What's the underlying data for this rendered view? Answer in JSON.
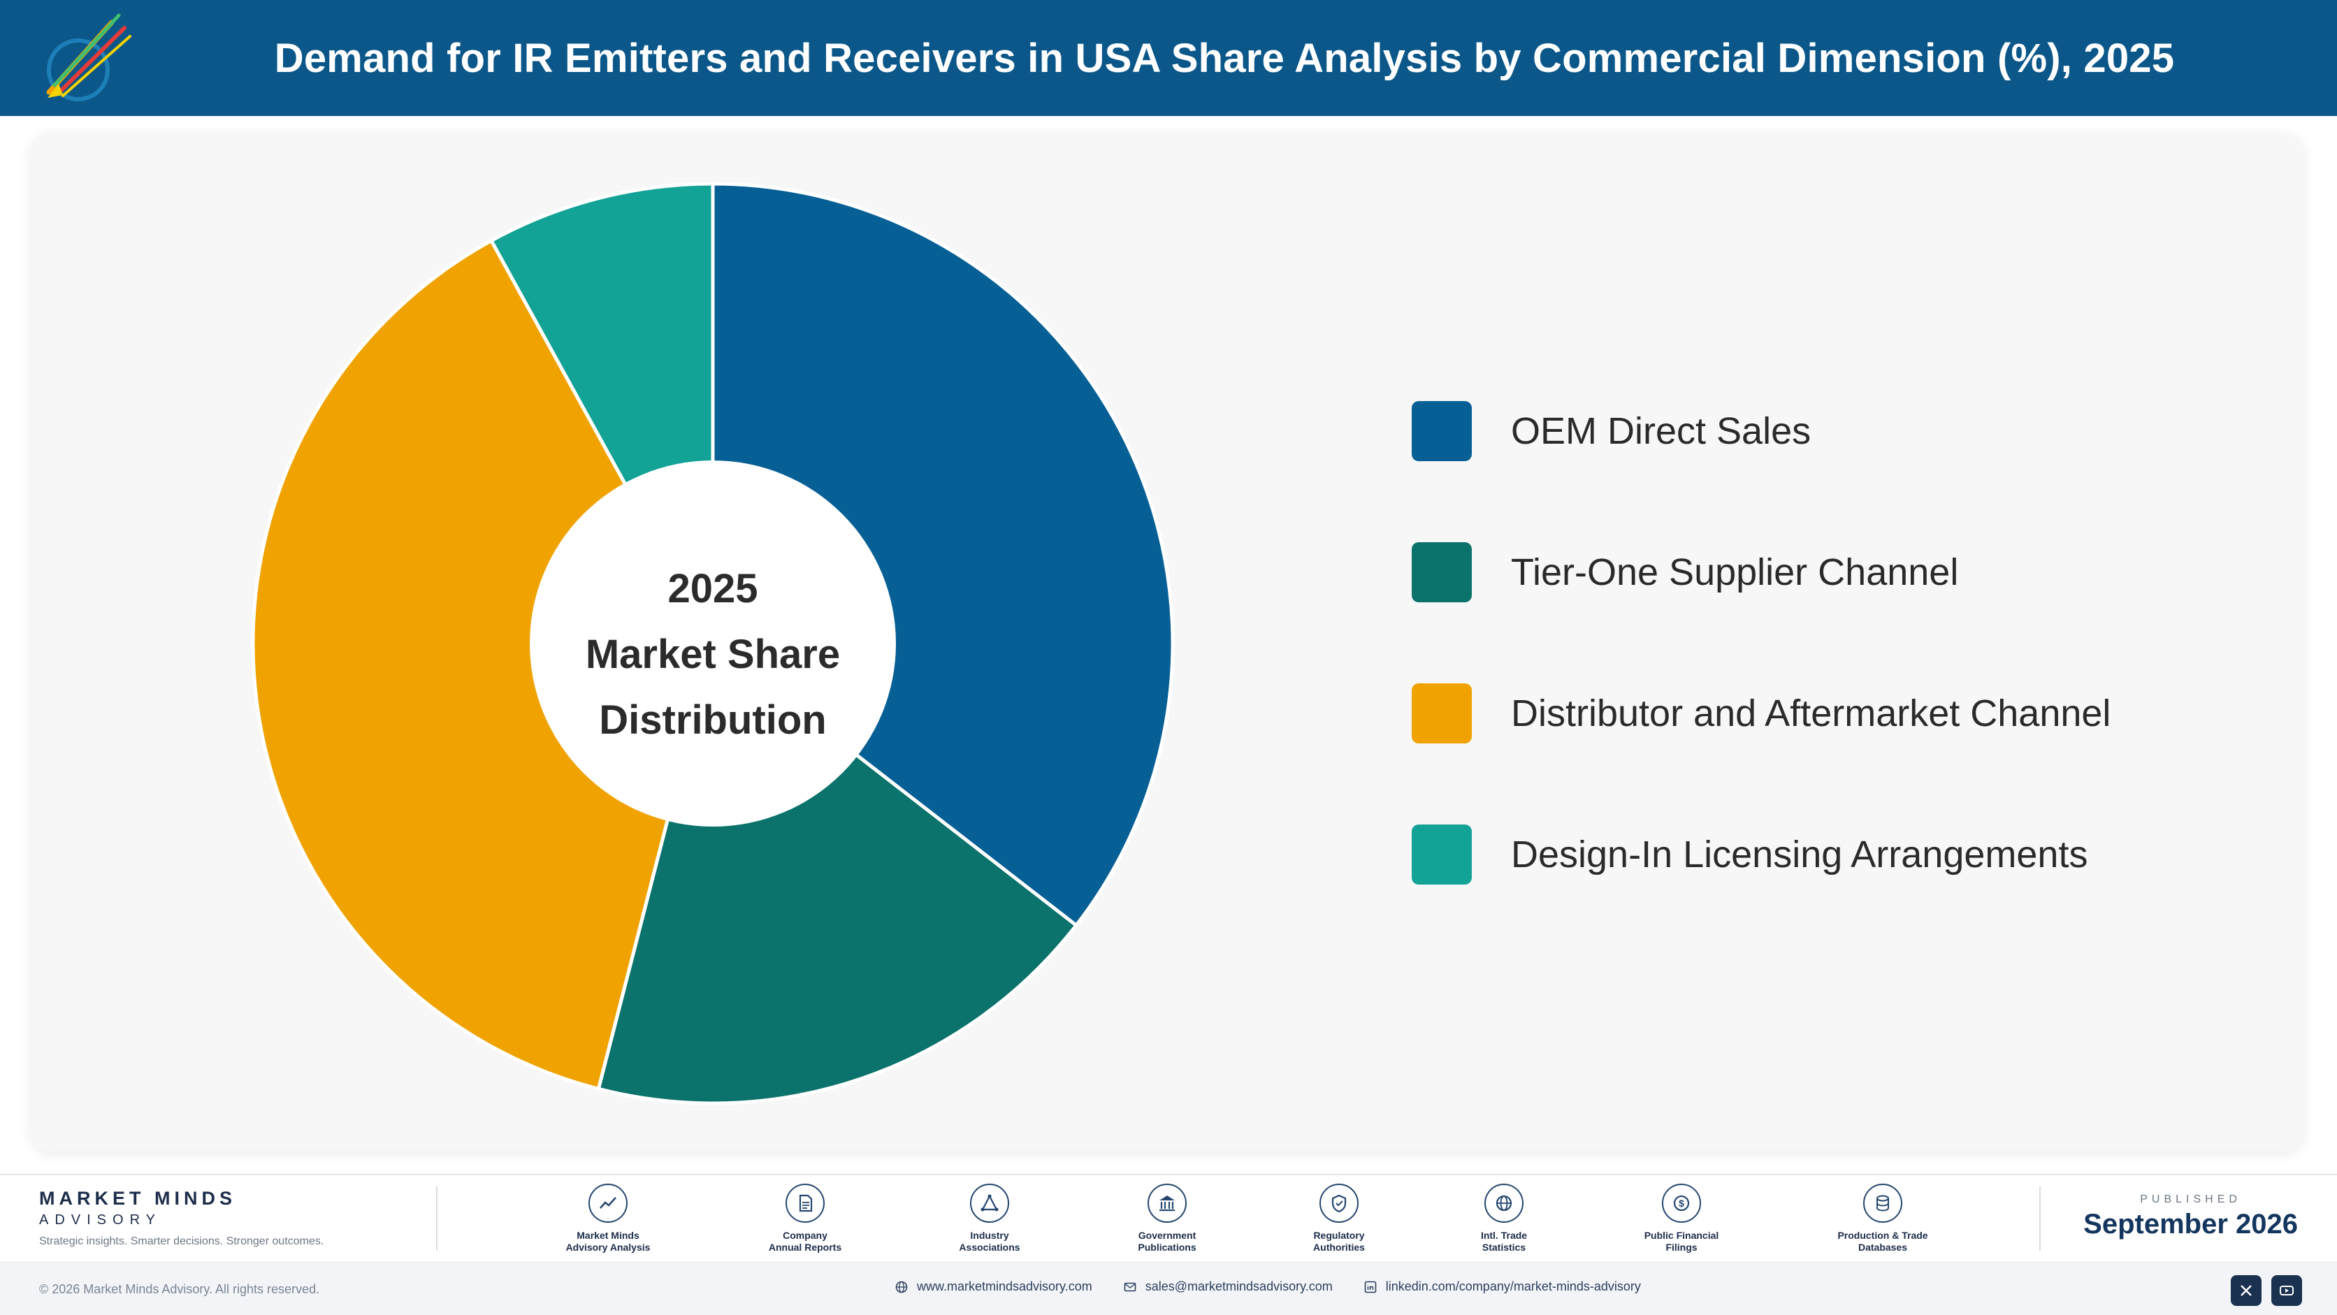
{
  "header": {
    "title": "Demand for IR Emitters and Receivers in USA Share Analysis by Commercial Dimension (%), 2025"
  },
  "chart_data": {
    "type": "pie",
    "variant": "donut",
    "center_label": [
      "2025",
      "Market Share",
      "Distribution"
    ],
    "categories": [
      "OEM Direct Sales",
      "Tier-One Supplier Channel",
      "Distributor and Aftermarket Channel",
      "Design-In Licensing Arrangements"
    ],
    "values": [
      35.5,
      18.5,
      38.0,
      8.0
    ],
    "colors": [
      "#065f95",
      "#0b726c",
      "#f0a300",
      "#12a396"
    ],
    "start_angle_deg": 0,
    "direction": "clockwise",
    "legend_position": "right"
  },
  "legend": {
    "items": [
      {
        "label": "OEM Direct Sales",
        "color": "#065f95"
      },
      {
        "label": "Tier-One Supplier Channel",
        "color": "#0b726c"
      },
      {
        "label": "Distributor and Aftermarket Channel",
        "color": "#f0a300"
      },
      {
        "label": "Design-In Licensing Arrangements",
        "color": "#12a396"
      }
    ]
  },
  "footer": {
    "brand_name": "MARKET MINDS",
    "brand_sub": "ADVISORY",
    "tagline": "Strategic insights. Smarter decisions. Stronger outcomes.",
    "sources": [
      {
        "line1": "Market Minds",
        "line2": "Advisory Analysis",
        "icon": "chart-line-icon"
      },
      {
        "line1": "Company",
        "line2": "Annual Reports",
        "icon": "document-icon"
      },
      {
        "line1": "Industry",
        "line2": "Associations",
        "icon": "network-icon"
      },
      {
        "line1": "Government",
        "line2": "Publications",
        "icon": "bank-icon"
      },
      {
        "line1": "Regulatory",
        "line2": "Authorities",
        "icon": "shield-icon"
      },
      {
        "line1": "Intl. Trade",
        "line2": "Statistics",
        "icon": "globe-icon"
      },
      {
        "line1": "Public Financial",
        "line2": "Filings",
        "icon": "coin-icon"
      },
      {
        "line1": "Production & Trade",
        "line2": "Databases",
        "icon": "database-icon"
      }
    ],
    "published_label": "PUBLISHED",
    "published_date": "September 2026",
    "copyright": "© 2026 Market Minds Advisory. All rights reserved.",
    "website": "www.marketmindsadvisory.com",
    "email": "sales@marketmindsadvisory.com",
    "linkedin": "linkedin.com/company/market-minds-advisory"
  }
}
